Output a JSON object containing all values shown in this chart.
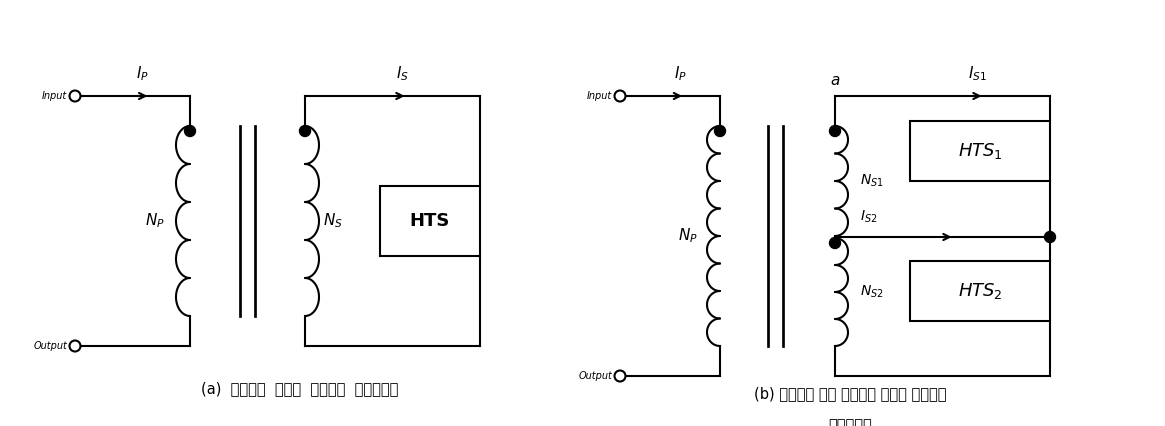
{
  "fig_width": 11.65,
  "fig_height": 4.26,
  "background_color": "#ffffff",
  "line_color": "#000000",
  "line_width": 1.5,
  "caption_a": "(a)  변압기형  초전도  한류기의  등가회로도",
  "caption_b_line1": "(b) 중성선을 갖는 변압기형 초전도 한류기의",
  "caption_b_line2": "등가회로도",
  "caption_fontsize": 10.5,
  "font_family": "NanumGothic"
}
